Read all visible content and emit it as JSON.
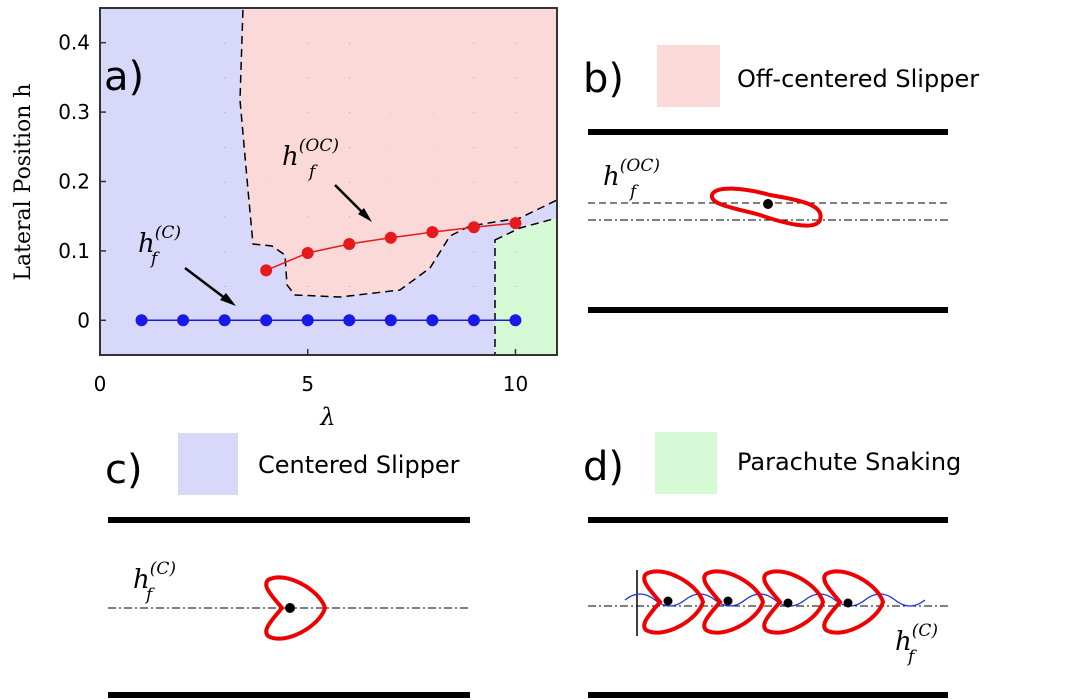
{
  "chart_data": {
    "type": "line",
    "panel_label": "a)",
    "ylabel": "Lateral Position h",
    "xlabel": "λ",
    "xlim": [
      0,
      11
    ],
    "xticks": [
      0,
      5,
      10
    ],
    "ylim": [
      -0.05,
      0.45
    ],
    "yticks": [
      0,
      0.1,
      0.2,
      0.3,
      0.4
    ],
    "series": [
      {
        "color": "#e8191b",
        "x": [
          4,
          5,
          6,
          7,
          8,
          9,
          10
        ],
        "values": [
          0.072,
          0.097,
          0.11,
          0.119,
          0.127,
          0.134,
          0.14
        ]
      },
      {
        "color": "#1a1ae6",
        "x": [
          1,
          2,
          3,
          4,
          5,
          6,
          7,
          8,
          9,
          10
        ],
        "values": [
          0,
          0,
          0,
          0,
          0,
          0,
          0,
          0,
          0,
          0
        ]
      }
    ],
    "annotations": [
      {
        "base": "h",
        "sub": "f",
        "sup": "(OC)"
      },
      {
        "base": "h",
        "sub": "f",
        "sup": "(C)"
      }
    ]
  },
  "panels": [
    {
      "label": "b)",
      "legend": "Off-centered Slipper",
      "annotation": {
        "base": "h",
        "sub": "f",
        "sup": "(OC)"
      }
    },
    {
      "label": "c)",
      "legend": "Centered Slipper",
      "annotation": {
        "base": "h",
        "sub": "f",
        "sup": "(C)"
      }
    },
    {
      "label": "d)",
      "legend": "Parachute Snaking",
      "annotation": {
        "base": "h",
        "sub": "f",
        "sup": "(C)"
      }
    }
  ]
}
